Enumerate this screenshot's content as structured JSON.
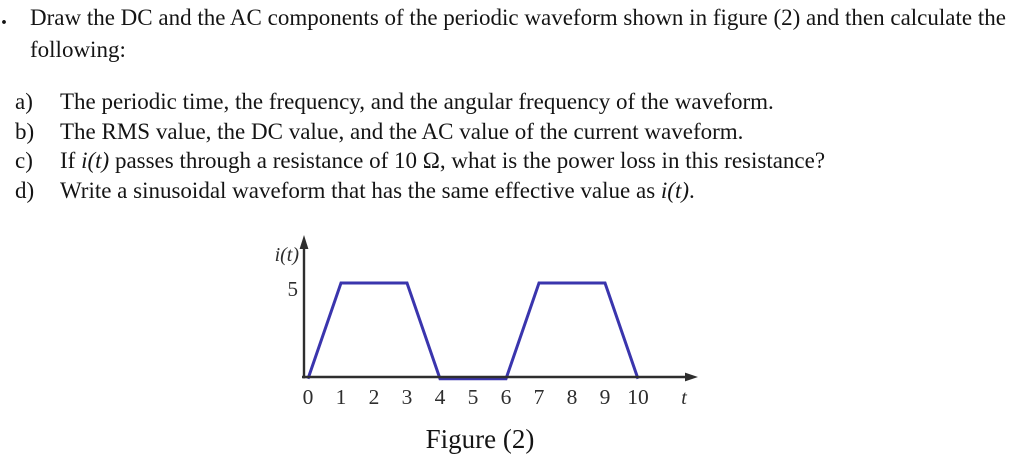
{
  "problem": {
    "marker": ".",
    "intro": "Draw the DC and the AC components of the periodic waveform shown in figure (2) and then calculate the following:",
    "items": [
      {
        "label": "a)",
        "segments": [
          {
            "text": "The periodic time, the frequency, and the angular frequency of the waveform."
          }
        ]
      },
      {
        "label": "b)",
        "segments": [
          {
            "text": "The RMS value, the DC value, and the AC value of the current waveform."
          }
        ]
      },
      {
        "label": "c)",
        "segments": [
          {
            "text": "If "
          },
          {
            "text": "i(t)",
            "math": true
          },
          {
            "text": " passes through a resistance of 10 Ω, what is the power loss in this resistance?"
          }
        ]
      },
      {
        "label": "d)",
        "segments": [
          {
            "text": "Write a sinusoidal waveform that has the same effective value as "
          },
          {
            "text": "i(t)",
            "math": true
          },
          {
            "text": "."
          }
        ]
      }
    ]
  },
  "figure": {
    "caption": "Figure (2)"
  },
  "chart_data": {
    "type": "line",
    "title": "Figure (2)",
    "ylabel": "i(t)",
    "xlabel": "t",
    "x_ticks": [
      "0",
      "1",
      "2",
      "3",
      "4",
      "5",
      "6",
      "7",
      "8",
      "9",
      "10"
    ],
    "y_tick_labels": [
      "5"
    ],
    "points": [
      [
        0,
        0
      ],
      [
        1,
        5
      ],
      [
        3,
        5
      ],
      [
        4,
        0
      ],
      [
        6,
        0
      ],
      [
        7,
        5
      ],
      [
        9,
        5
      ],
      [
        10,
        0
      ]
    ],
    "peak_value": 5,
    "xlim": [
      0,
      11.8
    ],
    "ylim": [
      0,
      7.3
    ],
    "grid": false,
    "legend": null,
    "line_color": "#3a35ad",
    "axis_color": "#2e2e2e"
  }
}
